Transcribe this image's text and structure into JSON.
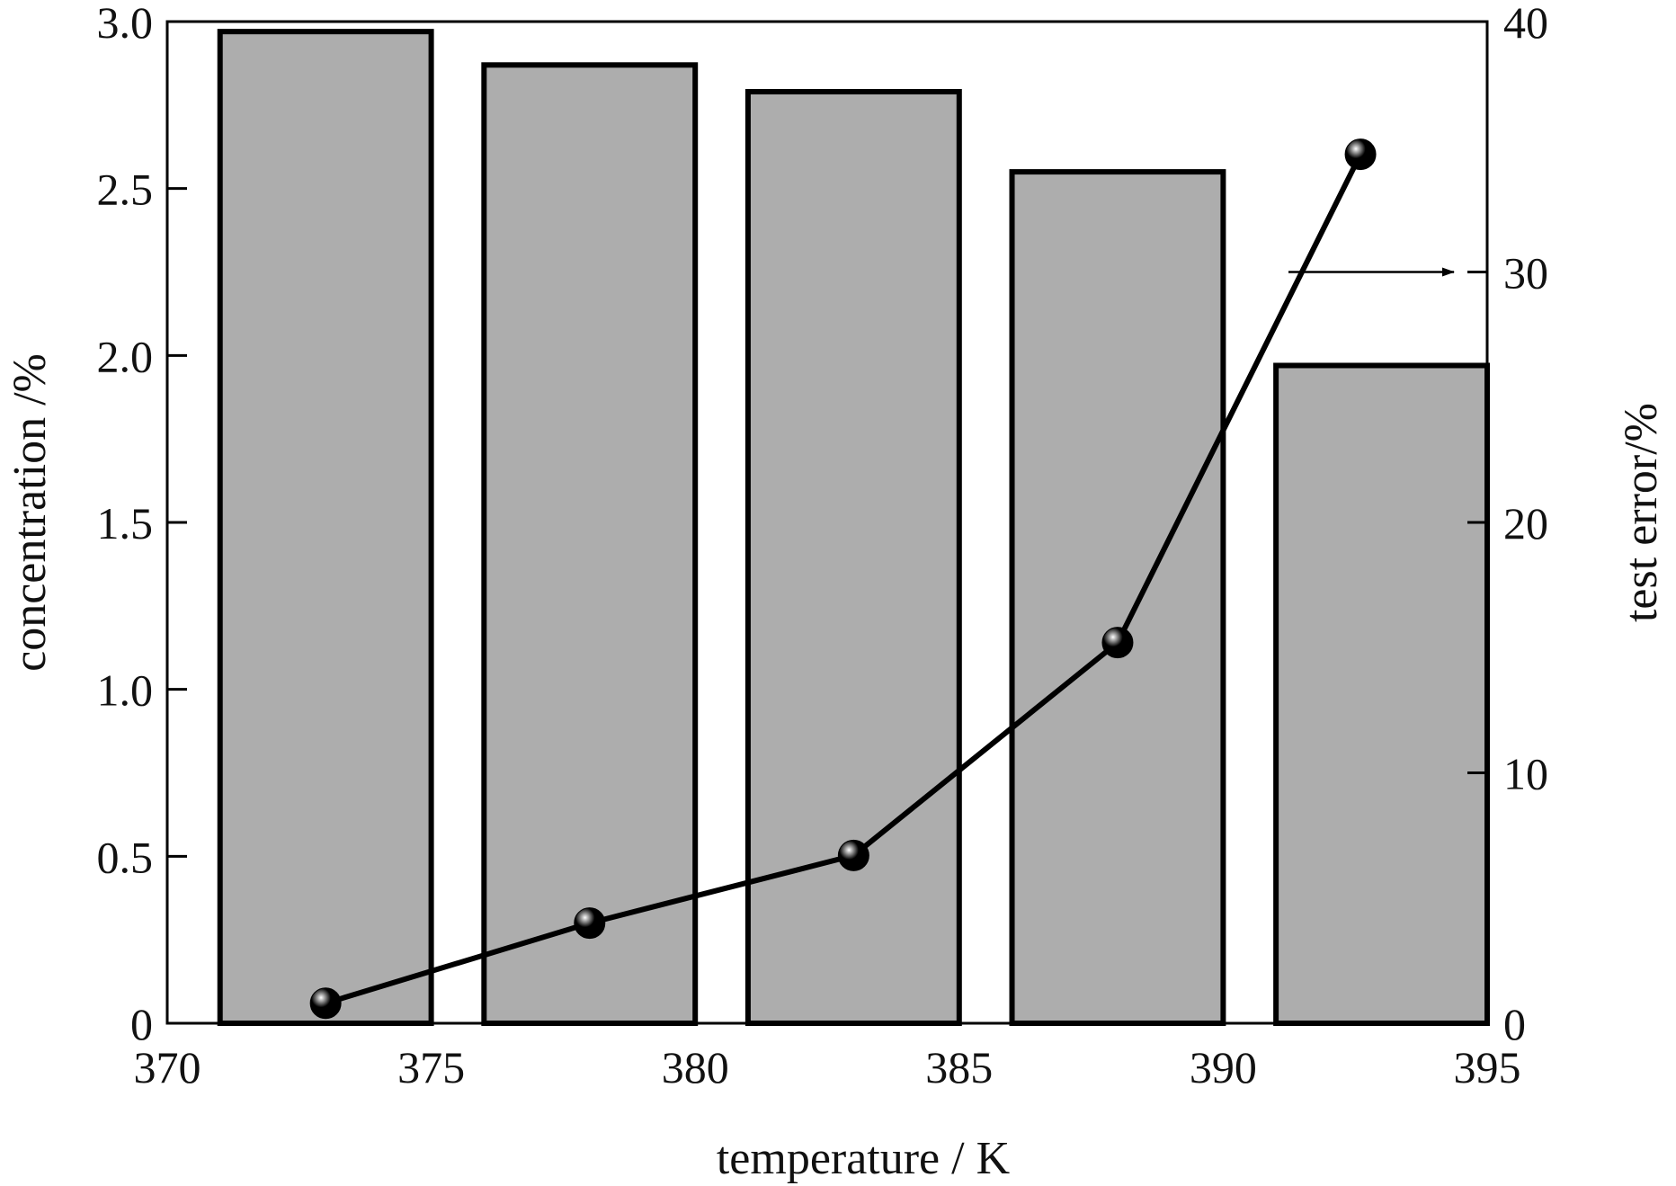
{
  "chart_data": {
    "type": "bar",
    "title": "",
    "xlabel": "temperature / K",
    "ylabel": "concentration /%",
    "y2label": "test error/%",
    "xlim": [
      370,
      395
    ],
    "ylim": [
      0,
      3.0
    ],
    "y2lim": [
      0,
      40
    ],
    "xticks": [
      "370",
      "375",
      "380",
      "385",
      "390",
      "395"
    ],
    "yticks": [
      "0",
      "0.5",
      "1.0",
      "1.5",
      "2.0",
      "2.5",
      "3.0"
    ],
    "y2ticks": [
      "0",
      "10",
      "20",
      "30",
      "40"
    ],
    "grid": false,
    "bars": [
      {
        "x0": 371,
        "x1": 375,
        "value": 2.97
      },
      {
        "x0": 376,
        "x1": 380,
        "value": 2.87
      },
      {
        "x0": 381,
        "x1": 385,
        "value": 2.79
      },
      {
        "x0": 386,
        "x1": 390,
        "value": 2.55
      },
      {
        "x0": 391,
        "x1": 395,
        "value": 1.97
      }
    ],
    "line_series": {
      "axis": "right",
      "x": [
        373,
        378,
        383,
        388,
        392.6
      ],
      "y": [
        0.8,
        4.0,
        6.7,
        15.2,
        34.7
      ]
    },
    "annotation": {
      "type": "arrow",
      "points_to": "right axis",
      "at_y": 30
    },
    "colors": {
      "bar_fill": "#adadad",
      "bar_edge": "#000000",
      "line": "#000000",
      "marker": "#000000"
    }
  }
}
